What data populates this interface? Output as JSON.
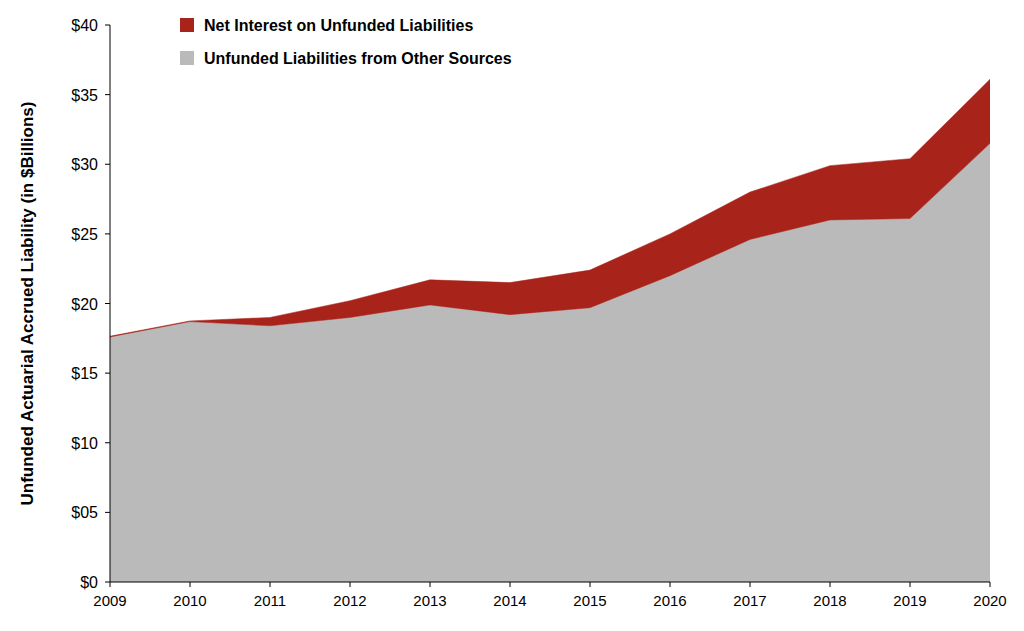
{
  "chart_data": {
    "type": "area",
    "stacked": true,
    "y_label": "Unfunded Actuarial Accrued Liability (in $Billions)",
    "x": [
      2009,
      2010,
      2011,
      2012,
      2013,
      2014,
      2015,
      2016,
      2017,
      2018,
      2019,
      2020
    ],
    "xlim": [
      2009,
      2020
    ],
    "xticks": [
      2009,
      2010,
      2011,
      2012,
      2013,
      2014,
      2015,
      2016,
      2017,
      2018,
      2019,
      2020
    ],
    "ylim": [
      0,
      40
    ],
    "yticks": [
      {
        "value": 0,
        "label": "$0"
      },
      {
        "value": 5,
        "label": "$05"
      },
      {
        "value": 10,
        "label": "$10"
      },
      {
        "value": 15,
        "label": "$15"
      },
      {
        "value": 20,
        "label": "$20"
      },
      {
        "value": 25,
        "label": "$25"
      },
      {
        "value": 30,
        "label": "$30"
      },
      {
        "value": 35,
        "label": "$35"
      },
      {
        "value": 40,
        "label": "$40"
      }
    ],
    "grid": false,
    "legend": "upper left",
    "series": [
      {
        "name": "Unfunded Liabilities from Other Sources",
        "color": "#bababa",
        "values": [
          17.6,
          18.7,
          18.4,
          19.0,
          19.9,
          19.2,
          19.7,
          22.0,
          24.6,
          26.0,
          26.1,
          31.5
        ]
      },
      {
        "name": "Net Interest on Unfunded Liabilities",
        "color": "#a8231a",
        "values": [
          0.05,
          0.05,
          0.6,
          1.2,
          1.8,
          2.3,
          2.7,
          3.0,
          3.4,
          3.9,
          4.3,
          4.6
        ]
      }
    ]
  }
}
